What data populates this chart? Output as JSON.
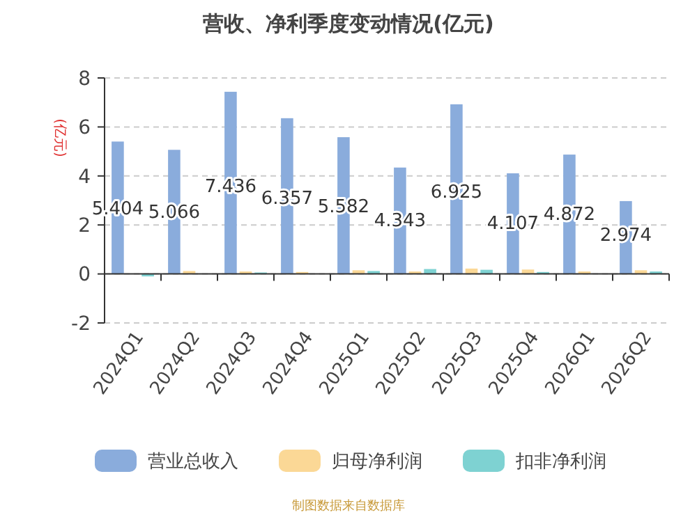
{
  "chart_data": {
    "type": "bar",
    "title": "营收、净利季度变动情况(亿元)",
    "ylabel": "(亿元)",
    "categories": [
      "2024Q1",
      "2024Q2",
      "2024Q3",
      "2024Q4",
      "2025Q1",
      "2025Q2",
      "2025Q3",
      "2025Q4",
      "2026Q1",
      "2026Q2"
    ],
    "series": [
      {
        "name": "营业总收入",
        "color": "#8aacdc",
        "values": [
          5.404,
          5.066,
          7.436,
          6.357,
          5.582,
          4.343,
          6.925,
          4.107,
          4.872,
          2.974
        ],
        "value_labels": [
          "5.404",
          "5.066",
          "7.436",
          "6.357",
          "5.582",
          "4.343",
          "6.925",
          "4.107",
          "4.872",
          "2.974"
        ]
      },
      {
        "name": "归母净利润",
        "color": "#fbd896",
        "values": [
          null,
          0.12,
          0.1,
          0.08,
          0.15,
          0.1,
          0.22,
          0.18,
          0.1,
          0.15
        ]
      },
      {
        "name": "扣非净利润",
        "color": "#7ed2d2",
        "values": [
          -0.1,
          null,
          0.06,
          null,
          0.12,
          0.2,
          0.17,
          0.08,
          null,
          0.1
        ]
      }
    ],
    "ylim": [
      -2,
      8
    ],
    "yticks": [
      -2,
      0,
      2,
      4,
      6,
      8
    ],
    "grid": "y",
    "legend": "bottom",
    "annotations": [
      "制图数据来自数据库"
    ]
  }
}
